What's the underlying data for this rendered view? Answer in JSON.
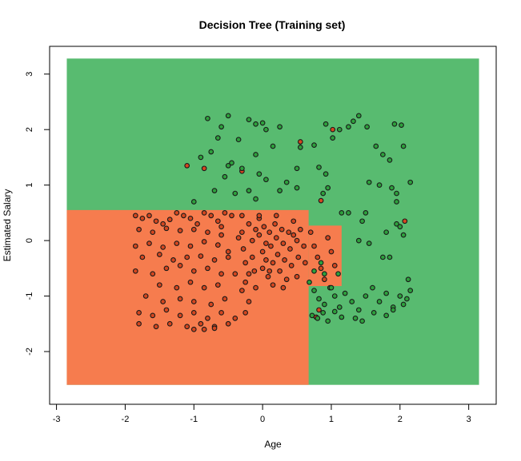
{
  "chart_data": {
    "type": "scatter",
    "title": "Decision Tree (Training set)",
    "xlabel": "Age",
    "ylabel": "Estimated Salary",
    "xlim": [
      -3.1,
      3.4
    ],
    "ylim": [
      -2.95,
      3.5
    ],
    "xticks": [
      -3,
      -2,
      -1,
      0,
      1,
      2,
      3
    ],
    "yticks": [
      -2,
      -1,
      0,
      1,
      2,
      3
    ],
    "grid": false,
    "legend": "none",
    "colors": {
      "region_class0": "#F67C4E",
      "region_class1": "#58BB70",
      "point_class0": "#D4461F",
      "point_class1": "#2DA03C",
      "point_edge": "#1a1a1a"
    },
    "regions": [
      {
        "class": 1,
        "x0": -2.85,
        "x1": 3.15,
        "y0": -2.6,
        "y1": 3.28
      },
      {
        "class": 0,
        "x0": -2.85,
        "x1": 0.67,
        "y0": -2.6,
        "y1": 0.55
      },
      {
        "class": 0,
        "x0": 0.67,
        "x1": 1.15,
        "y0": -0.82,
        "y1": 0.27
      }
    ],
    "series": [
      {
        "class": 0,
        "points": [
          [
            -1.85,
            0.45
          ],
          [
            -1.75,
            0.4
          ],
          [
            -1.65,
            0.45
          ],
          [
            -1.55,
            0.35
          ],
          [
            -1.45,
            0.3
          ],
          [
            -1.35,
            0.38
          ],
          [
            -1.25,
            0.5
          ],
          [
            -1.15,
            0.45
          ],
          [
            -1.05,
            0.4
          ],
          [
            -0.95,
            0.3
          ],
          [
            -0.85,
            0.5
          ],
          [
            -0.75,
            0.45
          ],
          [
            -0.65,
            0.35
          ],
          [
            -0.55,
            0.5
          ],
          [
            -0.45,
            0.45
          ],
          [
            -1.8,
            0.2
          ],
          [
            -1.6,
            0.15
          ],
          [
            -1.4,
            0.22
          ],
          [
            -1.2,
            0.18
          ],
          [
            -1.0,
            0.2
          ],
          [
            -0.8,
            0.15
          ],
          [
            -0.6,
            0.25
          ],
          [
            -1.85,
            -0.1
          ],
          [
            -1.65,
            -0.05
          ],
          [
            -1.45,
            -0.12
          ],
          [
            -1.25,
            -0.05
          ],
          [
            -1.05,
            -0.1
          ],
          [
            -0.85,
            -0.02
          ],
          [
            -0.65,
            -0.08
          ],
          [
            -1.75,
            -0.3
          ],
          [
            -1.5,
            -0.25
          ],
          [
            -1.3,
            -0.35
          ],
          [
            -1.1,
            -0.3
          ],
          [
            -0.9,
            -0.28
          ],
          [
            -0.7,
            -0.35
          ],
          [
            -1.85,
            -0.55
          ],
          [
            -1.6,
            -0.6
          ],
          [
            -1.4,
            -0.5
          ],
          [
            -1.2,
            -0.45
          ],
          [
            -1.0,
            -0.55
          ],
          [
            -0.8,
            -0.5
          ],
          [
            -0.6,
            -0.6
          ],
          [
            -1.5,
            -0.8
          ],
          [
            -1.25,
            -0.85
          ],
          [
            -1.05,
            -0.75
          ],
          [
            -0.85,
            -0.85
          ],
          [
            -0.65,
            -0.8
          ],
          [
            -1.7,
            -1.0
          ],
          [
            -1.45,
            -1.1
          ],
          [
            -1.2,
            -1.05
          ],
          [
            -1.0,
            -1.1
          ],
          [
            -0.75,
            -1.15
          ],
          [
            -0.55,
            -1.05
          ],
          [
            -1.8,
            -1.3
          ],
          [
            -1.6,
            -1.35
          ],
          [
            -1.4,
            -1.25
          ],
          [
            -1.2,
            -1.35
          ],
          [
            -1.0,
            -1.3
          ],
          [
            -0.8,
            -1.4
          ],
          [
            -0.6,
            -1.3
          ],
          [
            -0.4,
            -1.4
          ],
          [
            -0.25,
            -1.3
          ],
          [
            -1.8,
            -1.5
          ],
          [
            -1.55,
            -1.55
          ],
          [
            -1.35,
            -1.5
          ],
          [
            -1.1,
            -1.55
          ],
          [
            -0.9,
            -1.5
          ],
          [
            -0.7,
            -1.55
          ],
          [
            -0.5,
            -1.5
          ],
          [
            -1.0,
            -1.6
          ],
          [
            -0.85,
            -1.6
          ],
          [
            -0.7,
            -1.58
          ],
          [
            -0.6,
            0.1
          ],
          [
            -0.5,
            -0.2
          ],
          [
            -0.4,
            -0.6
          ],
          [
            -0.35,
            0.05
          ],
          [
            -0.3,
            -0.9
          ],
          [
            -0.3,
            0.45
          ],
          [
            -0.3,
            0.15
          ],
          [
            -0.28,
            -0.15
          ],
          [
            -0.25,
            -0.4
          ],
          [
            -0.25,
            -0.75
          ],
          [
            -0.2,
            -1.1
          ],
          [
            -0.2,
            0.3
          ],
          [
            -0.15,
            0.0
          ],
          [
            -0.15,
            -0.3
          ],
          [
            -0.12,
            -0.55
          ],
          [
            -0.1,
            -0.85
          ],
          [
            -0.1,
            0.2
          ],
          [
            -0.05,
            0.4
          ],
          [
            -0.05,
            0.1
          ],
          [
            0.0,
            -0.2
          ],
          [
            0.0,
            -0.5
          ],
          [
            0.02,
            0.25
          ],
          [
            0.05,
            -0.05
          ],
          [
            0.05,
            -0.35
          ],
          [
            0.08,
            -0.65
          ],
          [
            0.1,
            0.15
          ],
          [
            0.12,
            -0.1
          ],
          [
            0.15,
            -0.4
          ],
          [
            0.15,
            -0.8
          ],
          [
            0.18,
            0.3
          ],
          [
            0.2,
            0.05
          ],
          [
            0.22,
            -0.25
          ],
          [
            0.25,
            -0.55
          ],
          [
            0.28,
            0.2
          ],
          [
            0.3,
            -0.05
          ],
          [
            0.32,
            -0.35
          ],
          [
            0.35,
            -0.7
          ],
          [
            0.38,
            0.15
          ],
          [
            0.4,
            -0.15
          ],
          [
            0.42,
            -0.45
          ],
          [
            0.45,
            0.35
          ],
          [
            0.5,
            0.0
          ],
          [
            0.52,
            -0.3
          ],
          [
            0.55,
            0.2
          ],
          [
            0.6,
            -0.1
          ],
          [
            0.62,
            -0.4
          ],
          [
            -0.5,
            -0.3
          ],
          [
            -0.2,
            -0.6
          ],
          [
            0.1,
            -0.55
          ],
          [
            0.3,
            -0.85
          ],
          [
            0.5,
            -0.65
          ],
          [
            -0.05,
            0.45
          ],
          [
            0.2,
            0.45
          ],
          [
            0.45,
            0.1
          ],
          [
            0.7,
            0.15
          ],
          [
            0.75,
            -0.1
          ],
          [
            0.8,
            -0.3
          ],
          [
            0.85,
            -0.5
          ],
          [
            0.9,
            -0.7
          ],
          [
            0.95,
            0.05
          ],
          [
            1.0,
            -0.2
          ],
          [
            1.05,
            -0.45
          ],
          [
            -1.1,
            1.35
          ],
          [
            -0.85,
            1.3
          ],
          [
            -0.3,
            1.25
          ],
          [
            0.55,
            1.78
          ],
          [
            1.02,
            2.0
          ],
          [
            0.85,
            0.72
          ],
          [
            2.07,
            0.35
          ],
          [
            0.78,
            -1.38
          ],
          [
            0.82,
            -1.25
          ]
        ]
      },
      {
        "class": 1,
        "points": [
          [
            -0.8,
            2.2
          ],
          [
            -0.5,
            2.25
          ],
          [
            -0.2,
            2.18
          ],
          [
            -0.1,
            2.1
          ],
          [
            0.0,
            2.12
          ],
          [
            0.05,
            2.0
          ],
          [
            -0.6,
            2.05
          ],
          [
            -0.35,
            1.82
          ],
          [
            -0.65,
            1.85
          ],
          [
            0.25,
            2.05
          ],
          [
            0.15,
            1.7
          ],
          [
            -0.1,
            1.55
          ],
          [
            -0.75,
            1.6
          ],
          [
            -0.9,
            1.5
          ],
          [
            -0.45,
            1.4
          ],
          [
            -0.3,
            1.3
          ],
          [
            -0.05,
            1.2
          ],
          [
            -0.5,
            1.35
          ],
          [
            0.05,
            1.1
          ],
          [
            -0.2,
            0.9
          ],
          [
            -0.55,
            1.15
          ],
          [
            0.35,
            1.05
          ],
          [
            0.25,
            0.9
          ],
          [
            -0.4,
            0.85
          ],
          [
            -0.7,
            0.9
          ],
          [
            -1.0,
            0.7
          ],
          [
            0.5,
            1.3
          ],
          [
            0.5,
            0.95
          ],
          [
            -0.1,
            0.75
          ],
          [
            0.55,
            1.68
          ],
          [
            0.75,
            1.72
          ],
          [
            0.92,
            2.1
          ],
          [
            1.02,
            1.85
          ],
          [
            1.12,
            2.0
          ],
          [
            1.25,
            2.05
          ],
          [
            1.4,
            2.25
          ],
          [
            1.52,
            2.05
          ],
          [
            1.32,
            2.15
          ],
          [
            1.65,
            1.7
          ],
          [
            1.75,
            1.55
          ],
          [
            1.92,
            2.1
          ],
          [
            2.02,
            2.08
          ],
          [
            1.85,
            1.45
          ],
          [
            2.05,
            1.7
          ],
          [
            0.82,
            1.32
          ],
          [
            0.92,
            1.2
          ],
          [
            0.95,
            0.95
          ],
          [
            0.88,
            0.85
          ],
          [
            1.55,
            1.05
          ],
          [
            1.7,
            1.0
          ],
          [
            1.88,
            0.95
          ],
          [
            1.95,
            0.85
          ],
          [
            2.15,
            1.05
          ],
          [
            1.95,
            0.7
          ],
          [
            1.15,
            0.5
          ],
          [
            1.25,
            0.5
          ],
          [
            1.45,
            0.35
          ],
          [
            1.5,
            0.5
          ],
          [
            1.8,
            0.15
          ],
          [
            1.95,
            0.3
          ],
          [
            2.05,
            0.1
          ],
          [
            1.75,
            -0.3
          ],
          [
            1.85,
            -0.3
          ],
          [
            1.55,
            -0.05
          ],
          [
            1.4,
            0.0
          ],
          [
            2.0,
            0.25
          ],
          [
            0.68,
            -0.75
          ],
          [
            0.75,
            -0.9
          ],
          [
            0.82,
            -1.05
          ],
          [
            0.9,
            -1.15
          ],
          [
            0.98,
            -0.85
          ],
          [
            1.05,
            -1.0
          ],
          [
            1.12,
            -1.2
          ],
          [
            1.2,
            -0.95
          ],
          [
            1.3,
            -1.1
          ],
          [
            1.4,
            -1.25
          ],
          [
            1.5,
            -1.0
          ],
          [
            1.6,
            -0.85
          ],
          [
            1.7,
            -1.1
          ],
          [
            1.8,
            -0.95
          ],
          [
            1.9,
            -1.2
          ],
          [
            2.0,
            -1.0
          ],
          [
            2.12,
            -0.7
          ],
          [
            2.15,
            -0.9
          ],
          [
            2.1,
            -1.05
          ],
          [
            0.72,
            -1.35
          ],
          [
            0.8,
            -1.4
          ],
          [
            0.88,
            -1.3
          ],
          [
            0.95,
            -1.45
          ],
          [
            1.05,
            -1.28
          ],
          [
            1.15,
            -1.38
          ],
          [
            1.35,
            -1.4
          ],
          [
            1.45,
            -1.45
          ],
          [
            1.62,
            -1.3
          ],
          [
            1.8,
            -1.35
          ],
          [
            1.9,
            -1.25
          ],
          [
            2.05,
            -1.15
          ],
          [
            0.75,
            -0.55
          ],
          [
            0.85,
            -0.4
          ],
          [
            0.9,
            -0.6
          ],
          [
            1.0,
            -0.85
          ],
          [
            1.1,
            -0.6
          ]
        ]
      }
    ]
  }
}
